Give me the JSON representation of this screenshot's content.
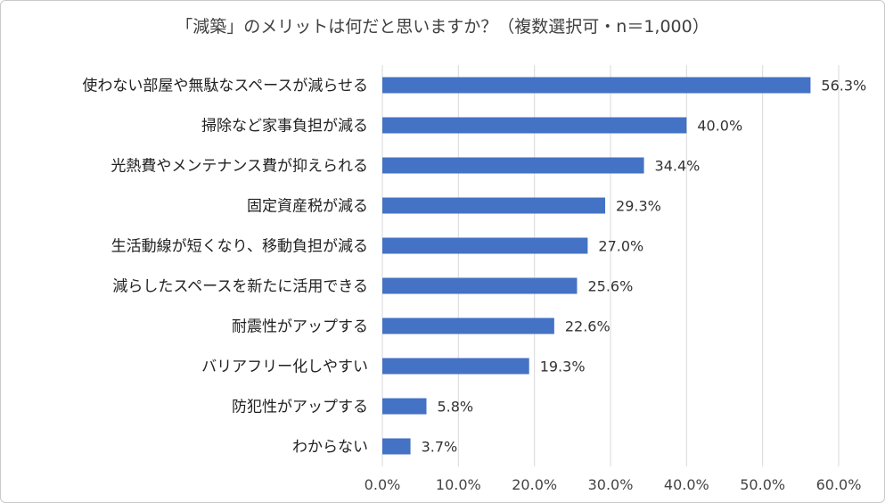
{
  "chart_data": {
    "type": "bar",
    "orientation": "horizontal",
    "title": "「減築」のメリットは何だと思いますか？（複数選択可・n＝1,000）",
    "categories": [
      "使わない部屋や無駄なスペースが減らせる",
      "掃除など家事負担が減る",
      "光熱費やメンテナンス費が抑えられる",
      "固定資産税が減る",
      "生活動線が短くなり、移動負担が減る",
      "減らしたスペースを新たに活用できる",
      "耐震性がアップする",
      "バリアフリー化しやすい",
      "防犯性がアップする",
      "わからない"
    ],
    "values": [
      56.3,
      40.0,
      34.4,
      29.3,
      27.0,
      25.6,
      22.6,
      19.3,
      5.8,
      3.7
    ],
    "value_labels": [
      "56.3%",
      "40.0%",
      "34.4%",
      "29.3%",
      "27.0%",
      "25.6%",
      "22.6%",
      "19.3%",
      "5.8%",
      "3.7%"
    ],
    "xlim": [
      0,
      60
    ],
    "x_ticks": [
      "0.0%",
      "10.0%",
      "20.0%",
      "30.0%",
      "40.0%",
      "50.0%",
      "60.0%"
    ],
    "grid": true,
    "bar_color": "#4472c4",
    "gridline_color": "#d9d9d9"
  }
}
